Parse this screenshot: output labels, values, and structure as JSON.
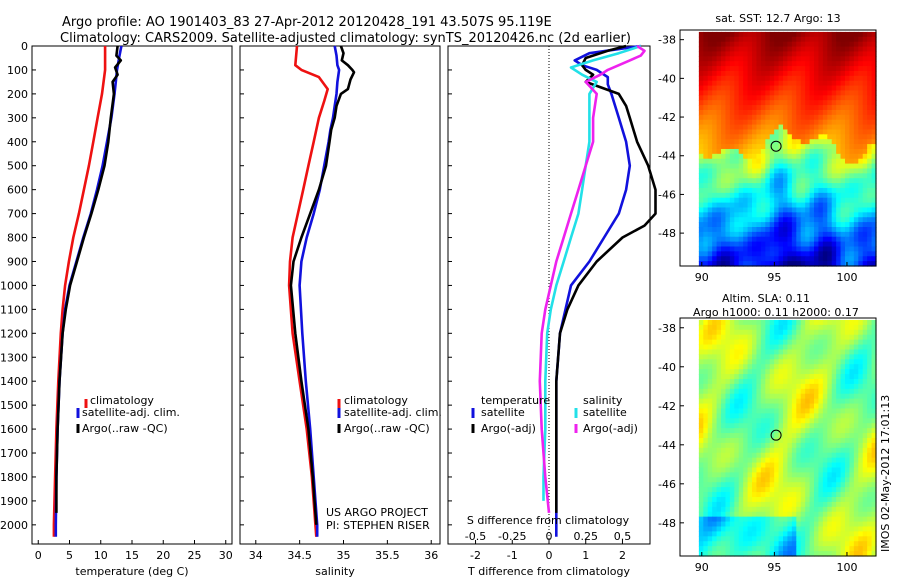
{
  "header": {
    "title_line1": "Argo profile: AO 1901403_83 27-Apr-2012 20120428_191 43.507S 95.119E",
    "title_line2": "Climatology: CARS2009. Satellite-adjusted climatology: synTS_20120426.nc (2d earlier)"
  },
  "colors": {
    "climatology": "#ee1111",
    "satellite": "#1111dd",
    "argo": "#000000",
    "sat_salinity": "#22e0e8",
    "argo_salinity": "#ee22ee"
  },
  "depth_ticks": [
    "0",
    "100",
    "200",
    "300",
    "400",
    "500",
    "600",
    "700",
    "800",
    "900",
    "1000",
    "1100",
    "1200",
    "1300",
    "1400",
    "1500",
    "1600",
    "1700",
    "1800",
    "1900",
    "2000"
  ],
  "chart_data": [
    {
      "type": "line",
      "id": "temperature",
      "xlabel": "temperature (deg C)",
      "xlim": [
        -1,
        31
      ],
      "ylim": [
        2080,
        0
      ],
      "xticks": [
        "0",
        "5",
        "10",
        "15",
        "20",
        "25",
        "30"
      ],
      "legend": [
        "climatology",
        "satellite-adj. clim.",
        "Argo(..raw -QC)"
      ],
      "series": [
        {
          "name": "climatology",
          "depth": [
            0,
            100,
            200,
            300,
            400,
            500,
            600,
            700,
            800,
            900,
            1000,
            1100,
            1200,
            1400,
            1600,
            1800,
            2000,
            2050
          ],
          "values": [
            10.7,
            10.7,
            10.2,
            9.5,
            8.8,
            8.1,
            7.3,
            6.5,
            5.6,
            4.9,
            4.3,
            3.9,
            3.6,
            3.2,
            2.9,
            2.7,
            2.5,
            2.5
          ]
        },
        {
          "name": "satellite-adj. clim.",
          "depth": [
            0,
            40,
            100,
            150,
            200,
            300,
            400,
            500,
            600,
            700,
            800,
            900,
            1000,
            1100,
            1200,
            1400,
            1600,
            1800,
            2000,
            2050
          ],
          "values": [
            13.3,
            13.0,
            12.6,
            12.4,
            12.2,
            11.7,
            11.0,
            10.3,
            9.4,
            8.4,
            7.2,
            6.1,
            5.0,
            4.3,
            3.9,
            3.4,
            3.1,
            2.9,
            2.8,
            2.8
          ]
        },
        {
          "name": "Argo(..raw -QC)",
          "depth": [
            0,
            40,
            60,
            90,
            120,
            150,
            200,
            300,
            400,
            500,
            600,
            700,
            800,
            900,
            1000,
            1100,
            1200,
            1400,
            1600,
            1800,
            1950
          ],
          "values": [
            12.7,
            12.5,
            13.2,
            12.3,
            12.7,
            11.9,
            12.1,
            11.6,
            11.2,
            10.6,
            9.6,
            8.5,
            7.3,
            6.2,
            5.1,
            4.4,
            3.9,
            3.4,
            3.1,
            2.9,
            2.9
          ]
        }
      ]
    },
    {
      "type": "line",
      "id": "salinity",
      "xlabel": "salinity",
      "xlim": [
        33.82,
        36.1
      ],
      "ylim": [
        2080,
        0
      ],
      "xticks": [
        "34",
        "34.5",
        "35",
        "35.5",
        "36"
      ],
      "legend": [
        "climatology",
        "satellite-adj. clim.",
        "Argo(..raw -QC)"
      ],
      "annotation_line1": "US ARGO PROJECT",
      "annotation_line2": "PI: STEPHEN RISER",
      "series": [
        {
          "name": "climatology",
          "depth": [
            0,
            80,
            100,
            130,
            180,
            230,
            300,
            400,
            500,
            600,
            700,
            800,
            900,
            1000,
            1200,
            1400,
            1600,
            1800,
            2000,
            2050
          ],
          "values": [
            34.47,
            34.45,
            34.52,
            34.72,
            34.82,
            34.78,
            34.72,
            34.66,
            34.6,
            34.54,
            34.48,
            34.42,
            34.39,
            34.38,
            34.42,
            34.5,
            34.58,
            34.64,
            34.68,
            34.69
          ]
        },
        {
          "name": "satellite-adj. clim.",
          "depth": [
            0,
            40,
            80,
            100,
            150,
            200,
            250,
            300,
            350,
            400,
            500,
            600,
            700,
            800,
            900,
            1000,
            1200,
            1400,
            1600,
            1800,
            2000,
            2050
          ],
          "values": [
            34.9,
            34.92,
            34.93,
            34.95,
            34.93,
            34.92,
            34.9,
            34.88,
            34.85,
            34.83,
            34.78,
            34.73,
            34.66,
            34.58,
            34.52,
            34.5,
            34.53,
            34.57,
            34.62,
            34.66,
            34.7,
            34.7
          ]
        },
        {
          "name": "Argo(..raw -QC)",
          "depth": [
            0,
            30,
            60,
            80,
            100,
            110,
            140,
            180,
            200,
            250,
            300,
            350,
            400,
            500,
            600,
            700,
            800,
            900,
            1000,
            1200,
            1400,
            1600,
            1800,
            2000
          ],
          "values": [
            34.97,
            35.0,
            34.98,
            35.05,
            35.1,
            35.12,
            35.08,
            35.05,
            34.97,
            34.92,
            34.9,
            34.86,
            34.84,
            34.8,
            34.72,
            34.62,
            34.52,
            34.43,
            34.4,
            34.45,
            34.52,
            34.6,
            34.65,
            34.69
          ]
        }
      ]
    },
    {
      "type": "line",
      "id": "difference",
      "xlabel": "T difference from climatology",
      "xlabel_top": "S difference from climatology",
      "xlim": [
        -2.75,
        2.75
      ],
      "ylim": [
        2080,
        0
      ],
      "xticks_T": [
        "-2",
        "-1",
        "0",
        "1",
        "2"
      ],
      "xticks_S": [
        "-0.5",
        "-0.25",
        "0",
        "0.25",
        "0.5"
      ],
      "legend_title_T": "temperature",
      "legend_title_S": "salinity",
      "legend_T": [
        "satellite",
        "Argo(-adj)"
      ],
      "legend_S": [
        "satellite",
        "Argo(-adj)"
      ],
      "series": [
        {
          "name": "satellite",
          "depth": [
            0,
            30,
            60,
            80,
            100,
            130,
            160,
            200,
            300,
            400,
            500,
            600,
            700,
            800,
            900,
            1000,
            1200,
            1400,
            1600,
            1800,
            2000,
            2050
          ],
          "values": [
            2.5,
            1.1,
            0.7,
            0.9,
            1.3,
            1.6,
            1.6,
            1.7,
            1.9,
            2.1,
            2.2,
            2.1,
            1.9,
            1.5,
            1.1,
            0.6,
            0.3,
            0.2,
            0.2,
            0.2,
            0.2,
            0.2
          ]
        },
        {
          "name": "Argo(-adj)",
          "depth": [
            0,
            20,
            50,
            80,
            100,
            120,
            150,
            200,
            250,
            300,
            400,
            500,
            600,
            700,
            750,
            800,
            900,
            1000,
            1100,
            1200,
            1400,
            1600,
            1800,
            1950
          ],
          "values": [
            2.1,
            1.6,
            1.0,
            0.9,
            1.0,
            1.2,
            1.0,
            1.9,
            2.1,
            2.2,
            2.4,
            2.7,
            2.9,
            2.9,
            2.6,
            2.0,
            1.3,
            0.8,
            0.5,
            0.3,
            0.2,
            0.2,
            0.2,
            0.2
          ]
        },
        {
          "name": "satellite",
          "depth": [
            0,
            30,
            60,
            90,
            120,
            150,
            200,
            250,
            300,
            400,
            500,
            600,
            700,
            800,
            900,
            1000,
            1100,
            1200,
            1400,
            1600,
            1800,
            1900
          ],
          "values": [
            2.5,
            1.9,
            1.2,
            0.6,
            0.9,
            1.3,
            1.1,
            1.1,
            1.1,
            1.1,
            1.0,
            0.9,
            0.8,
            0.6,
            0.4,
            0.2,
            0.05,
            -0.05,
            -0.1,
            -0.1,
            -0.15,
            -0.15
          ]
        },
        {
          "name": "Argo(-adj)",
          "depth": [
            0,
            20,
            40,
            60,
            80,
            100,
            120,
            150,
            200,
            300,
            400,
            500,
            600,
            700,
            800,
            900,
            1000,
            1100,
            1200,
            1400,
            1600,
            1800,
            1950
          ],
          "values": [
            2.4,
            2.6,
            2.5,
            2.2,
            1.9,
            1.6,
            1.4,
            1.0,
            1.3,
            1.2,
            1.2,
            1.0,
            0.8,
            0.6,
            0.4,
            0.2,
            0.05,
            -0.1,
            -0.2,
            -0.25,
            -0.2,
            -0.1,
            0.0
          ]
        }
      ]
    },
    {
      "type": "heatmap",
      "id": "sst-map",
      "title": "sat. SST: 12.7 Argo: 13",
      "xlim": [
        88.5,
        102
      ],
      "ylim": [
        -49.7,
        -37.5
      ],
      "xticks": [
        "90",
        "95",
        "100"
      ],
      "yticks": [
        "-38",
        "-40",
        "-42",
        "-44",
        "-46",
        "-48"
      ],
      "marker": {
        "lon": 95.119,
        "lat": -43.507
      }
    },
    {
      "type": "heatmap",
      "id": "sla-map",
      "title_line1": "Altim. SLA: 0.11",
      "title_line2": "Argo h1000: 0.11 h2000: 0.17",
      "xlim": [
        88.5,
        102
      ],
      "ylim": [
        -49.7,
        -37.5
      ],
      "xticks": [
        "90",
        "95",
        "100"
      ],
      "yticks": [
        "-38",
        "-40",
        "-42",
        "-44",
        "-46",
        "-48"
      ],
      "marker": {
        "lon": 95.119,
        "lat": -43.507
      }
    }
  ],
  "footer": {
    "side_stamp": "IMOS 02-May-2012 17:01:13"
  }
}
